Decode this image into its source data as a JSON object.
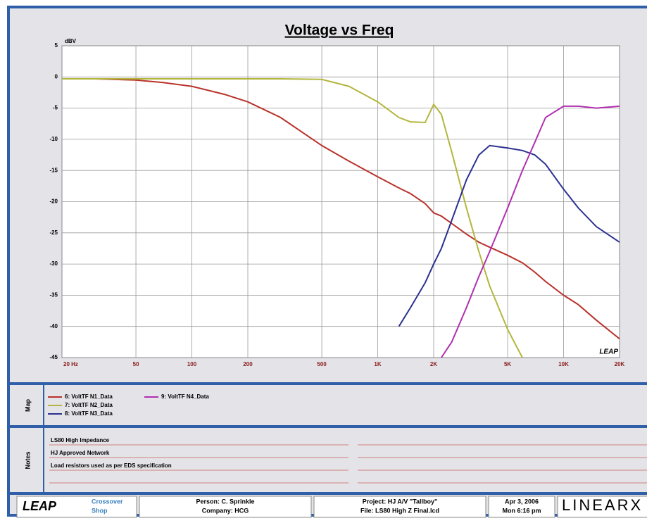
{
  "chart_data": {
    "type": "line",
    "title": "Voltage vs Freq",
    "y_unit": "dBV",
    "watermark": "LEAP",
    "log_x": true,
    "grid": true,
    "x": [
      20,
      30,
      50,
      70,
      100,
      150,
      200,
      300,
      500,
      700,
      1000,
      1300,
      1500,
      1800,
      2000,
      2200,
      2500,
      3000,
      3500,
      4000,
      5000,
      6000,
      7000,
      8000,
      10000,
      12000,
      15000,
      20000
    ],
    "series": [
      {
        "name": "6: VoltTF N1_Data",
        "color": "#b8322a",
        "values": [
          -0.3,
          -0.3,
          -0.5,
          -0.9,
          -1.5,
          -2.8,
          -4,
          -6.5,
          -11,
          -13.5,
          -16,
          -17.8,
          -18.7,
          -20.3,
          -21.8,
          -22.3,
          -23.5,
          -25.2,
          -26.5,
          -27.3,
          -28.6,
          -29.8,
          -31.3,
          -32.8,
          -35,
          -36.5,
          -39,
          -42
        ]
      },
      {
        "name": "7: VoltTF N2_Data",
        "color": "#b3b63c",
        "values": [
          -0.3,
          -0.3,
          -0.3,
          -0.3,
          -0.3,
          -0.3,
          -0.3,
          -0.3,
          -0.4,
          -1.5,
          -4,
          -6.5,
          -7.2,
          -7.3,
          -4.4,
          -6,
          -12,
          -21,
          -28,
          -33.5,
          -40.5,
          -45,
          null,
          null,
          null,
          null,
          null,
          null
        ]
      },
      {
        "name": "8: VoltTF N3_Data",
        "color": "#2b3090",
        "values": [
          null,
          null,
          null,
          null,
          null,
          null,
          null,
          null,
          null,
          null,
          null,
          -40,
          -37,
          -33,
          -30,
          -27.5,
          -23,
          -16.5,
          -12.5,
          -11,
          -11.4,
          -11.8,
          -12.5,
          -14,
          -18,
          -21,
          -24,
          -26.5
        ]
      },
      {
        "name": "9: VoltTF N4_Data",
        "color": "#b030b0",
        "values": [
          null,
          null,
          null,
          null,
          null,
          null,
          null,
          null,
          null,
          null,
          null,
          null,
          null,
          null,
          null,
          -45,
          -42.5,
          -37,
          -32,
          -28,
          -21,
          -15,
          -10.5,
          -6.5,
          -4.7,
          -4.7,
          -5,
          -4.7
        ]
      }
    ],
    "xlim": [
      20,
      20000
    ],
    "xticks": [
      {
        "value": 20,
        "label": "20 Hz"
      },
      50,
      100,
      200,
      500,
      {
        "value": 1000,
        "label": "1K"
      },
      {
        "value": 2000,
        "label": "2K"
      },
      {
        "value": 5000,
        "label": "5K"
      },
      {
        "value": 10000,
        "label": "10K"
      },
      {
        "value": 20000,
        "label": "20K"
      }
    ],
    "ylim": [
      -45,
      5
    ],
    "yticks": [
      5,
      0,
      -5,
      -10,
      -15,
      -20,
      -25,
      -30,
      -35,
      -40,
      -45
    ]
  },
  "map": {
    "label": "Map"
  },
  "notes": {
    "label": "Notes",
    "lines": [
      "LS80 High Impedance",
      "HJ Approved Network",
      "Load resistors used as per EDS specification"
    ]
  },
  "footer": {
    "logo": "LEAP",
    "product": [
      "Crossover",
      "Shop"
    ],
    "person": "Person: C. Sprinkle",
    "company": "Company: HCG",
    "project": "Project: HJ A/V \"Tallboy\"",
    "file": "File: LS80 High Z Final.lcd",
    "date": "Apr 3, 2006",
    "time": "Mon 6:16 pm",
    "brand": "LINEARX"
  }
}
